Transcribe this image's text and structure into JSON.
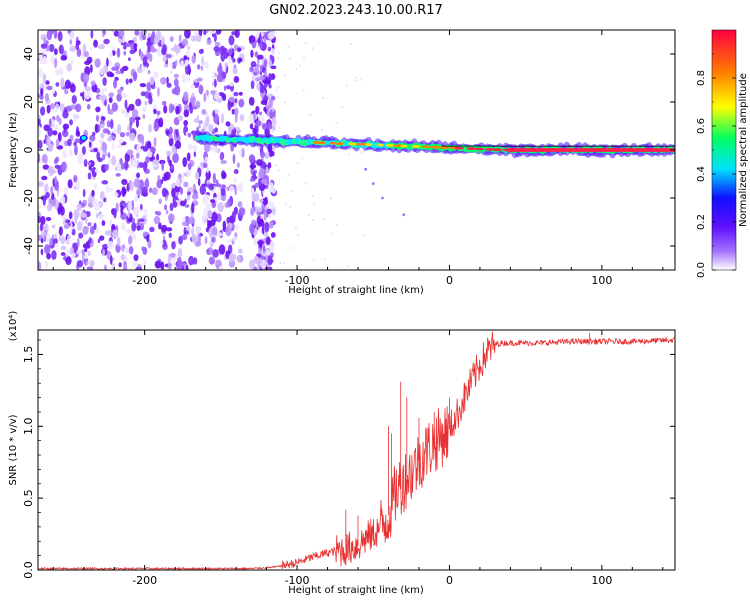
{
  "title": "GN02.2023.243.10.00.R17",
  "colorbar": {
    "label": "Normalized spectral amplitude",
    "ticks": [
      "0.0",
      "0.2",
      "0.4",
      "0.6",
      "0.8"
    ],
    "tick_values": [
      0.0,
      0.2,
      0.4,
      0.6,
      0.8
    ],
    "range": [
      0,
      1
    ],
    "colormap": [
      "#ffffff",
      "#a070ff",
      "#6010ff",
      "#1010ff",
      "#00e0ff",
      "#00ff60",
      "#ffff00",
      "#ff8000",
      "#ff0040"
    ]
  },
  "chart_data": [
    {
      "type": "heatmap",
      "xlabel": "Height of straight line (km)",
      "ylabel": "Frequency (Hz)",
      "xlim": [
        -270,
        148
      ],
      "ylim": [
        -50,
        50
      ],
      "xticks": [
        -200,
        -100,
        0,
        100
      ],
      "xtick_labels": [
        "-200",
        "-100",
        "0",
        "100"
      ],
      "yticks": [
        -40,
        -20,
        0,
        20,
        40
      ],
      "ytick_labels": [
        "-40",
        "-20",
        "0",
        "20",
        "40"
      ],
      "noise_region_km": [
        -270,
        -115
      ],
      "signal": {
        "start_km": -165,
        "end_km": 148,
        "frequency_start_hz": 5,
        "frequency_end_hz": 0,
        "peak_amplitude": 0.95
      },
      "grid": false
    },
    {
      "type": "line",
      "xlabel": "Height of straight line (km)",
      "ylabel": "SNR (10 * v/v)",
      "y_multiplier": "(x10⁴)",
      "xlim": [
        -270,
        148
      ],
      "ylim": [
        0,
        1.67
      ],
      "xticks": [
        -200,
        -100,
        0,
        100
      ],
      "xtick_labels": [
        "-200",
        "-100",
        "0",
        "100"
      ],
      "yticks": [
        0.0,
        0.5,
        1.0,
        1.5
      ],
      "ytick_labels": [
        "0.0",
        "0.5",
        "1.0",
        "1.5"
      ],
      "color": "#e83030",
      "x": [
        -270,
        -240,
        -200,
        -160,
        -130,
        -115,
        -100,
        -90,
        -80,
        -70,
        -60,
        -55,
        -50,
        -45,
        -40,
        -35,
        -30,
        -25,
        -20,
        -15,
        -10,
        -5,
        0,
        5,
        10,
        15,
        20,
        25,
        30,
        35,
        40,
        60,
        80,
        100,
        120,
        148
      ],
      "y": [
        0.01,
        0.01,
        0.01,
        0.01,
        0.01,
        0.02,
        0.05,
        0.09,
        0.12,
        0.14,
        0.17,
        0.22,
        0.25,
        0.3,
        0.38,
        0.55,
        0.62,
        0.68,
        0.76,
        0.83,
        0.89,
        0.93,
        0.98,
        1.08,
        1.2,
        1.32,
        1.43,
        1.52,
        1.57,
        1.58,
        1.58,
        1.58,
        1.59,
        1.59,
        1.59,
        1.6
      ],
      "spikes": [
        {
          "x": -68,
          "y": 0.42
        },
        {
          "x": -60,
          "y": 0.38
        },
        {
          "x": -40,
          "y": 1.0
        },
        {
          "x": -38,
          "y": 0.95
        },
        {
          "x": -32,
          "y": 1.31
        },
        {
          "x": -28,
          "y": 1.2
        },
        {
          "x": -20,
          "y": 1.06
        },
        {
          "x": -10,
          "y": 1.1
        },
        {
          "x": 0,
          "y": 1.2
        },
        {
          "x": 10,
          "y": 1.3
        },
        {
          "x": 92,
          "y": 1.65
        }
      ],
      "grid": false
    }
  ]
}
